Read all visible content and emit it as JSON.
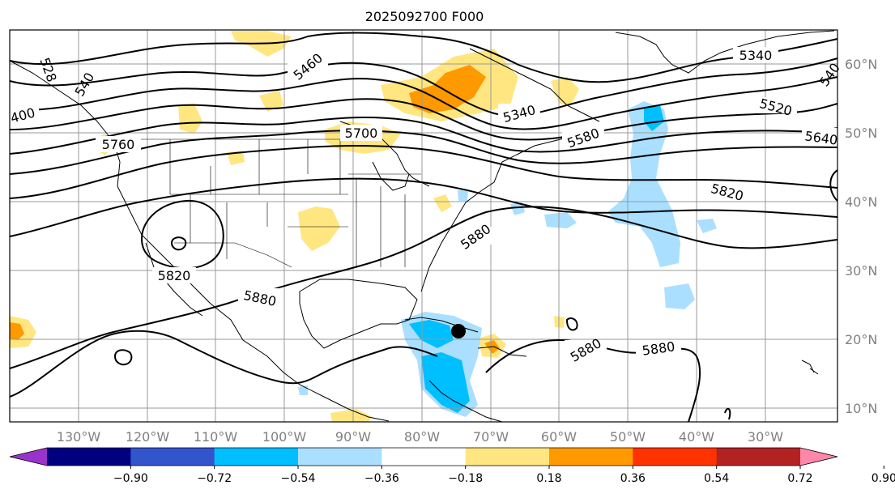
{
  "title": "2025092700 F000",
  "lon_labels": [
    "130°W",
    "120°W",
    "110°W",
    "100°W",
    "90°W",
    "80°W",
    "70°W",
    "60°W",
    "50°W",
    "40°W",
    "30°W"
  ],
  "lat_labels": [
    "60°N",
    "50°N",
    "40°N",
    "30°N",
    "20°N",
    "10°N"
  ],
  "contour_labels": {
    "c5340_top": "5340",
    "c5340_mid": "5340",
    "c5460": "5460",
    "c5520": "5520",
    "c5580": "5580",
    "c5640": "5640",
    "c5700": "5700",
    "c5760": "5760",
    "c5820_west": "5820",
    "c5820_east": "5820",
    "c5880_a": "5880",
    "c5880_b": "5880",
    "c5880_c": "5880",
    "c5880_d": "5880",
    "c5400": "400",
    "c5280": "528",
    "c5240": "540",
    "c5400_east": "540"
  },
  "colorbar": {
    "tick_labels": [
      "−0.90",
      "−0.72",
      "−0.54",
      "−0.36",
      "−0.18",
      "0.18",
      "0.36",
      "0.54",
      "0.72",
      "0.90"
    ],
    "colors": [
      "#9933cc",
      "#000080",
      "#3355cc",
      "#00bfff",
      "#aadfff",
      "#ffffff",
      "#ffe680",
      "#ff9900",
      "#ff3300",
      "#b22222",
      "#ff88aa"
    ]
  },
  "storm_marker": "black-dot"
}
